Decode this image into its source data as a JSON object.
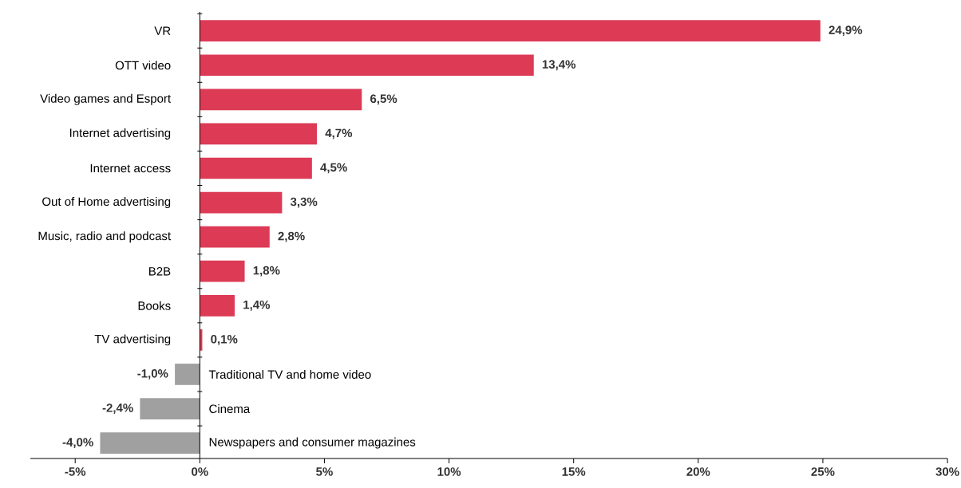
{
  "chart_data": {
    "type": "bar",
    "orientation": "horizontal",
    "categories": [
      "VR",
      "OTT video",
      "Video games and Esport",
      "Internet advertising",
      "Internet access",
      "Out of Home advertising",
      "Music, radio and podcast",
      "B2B",
      "Books",
      "TV advertising",
      "Traditional TV and home video",
      "Cinema",
      "Newspapers and consumer magazines"
    ],
    "values": [
      24.9,
      13.4,
      6.5,
      4.7,
      4.5,
      3.3,
      2.8,
      1.8,
      1.4,
      0.1,
      -1.0,
      -2.4,
      -4.0
    ],
    "value_labels": [
      "24,9%",
      "13,4%",
      "6,5%",
      "4,7%",
      "4,5%",
      "3,3%",
      "2,8%",
      "1,8%",
      "1,4%",
      "0,1%",
      "-1,0%",
      "-2,4%",
      "-4,0%"
    ],
    "colors": [
      "#dc3a55",
      "#dc3a55",
      "#dc3a55",
      "#dc3a55",
      "#dc3a55",
      "#dc3a55",
      "#dc3a55",
      "#dc3a55",
      "#dc3a55",
      "#dc3a55",
      "#a0a0a0",
      "#a0a0a0",
      "#a0a0a0"
    ],
    "xlim": [
      -6.8,
      30
    ],
    "xticks": [
      {
        "value": -5,
        "label": "-5%"
      },
      {
        "value": 0,
        "label": "0%"
      },
      {
        "value": 5,
        "label": "5%"
      },
      {
        "value": 10,
        "label": "10%"
      },
      {
        "value": 15,
        "label": "15%"
      },
      {
        "value": 20,
        "label": "20%"
      },
      {
        "value": 25,
        "label": "25%"
      },
      {
        "value": 30,
        "label": "30%"
      }
    ]
  }
}
